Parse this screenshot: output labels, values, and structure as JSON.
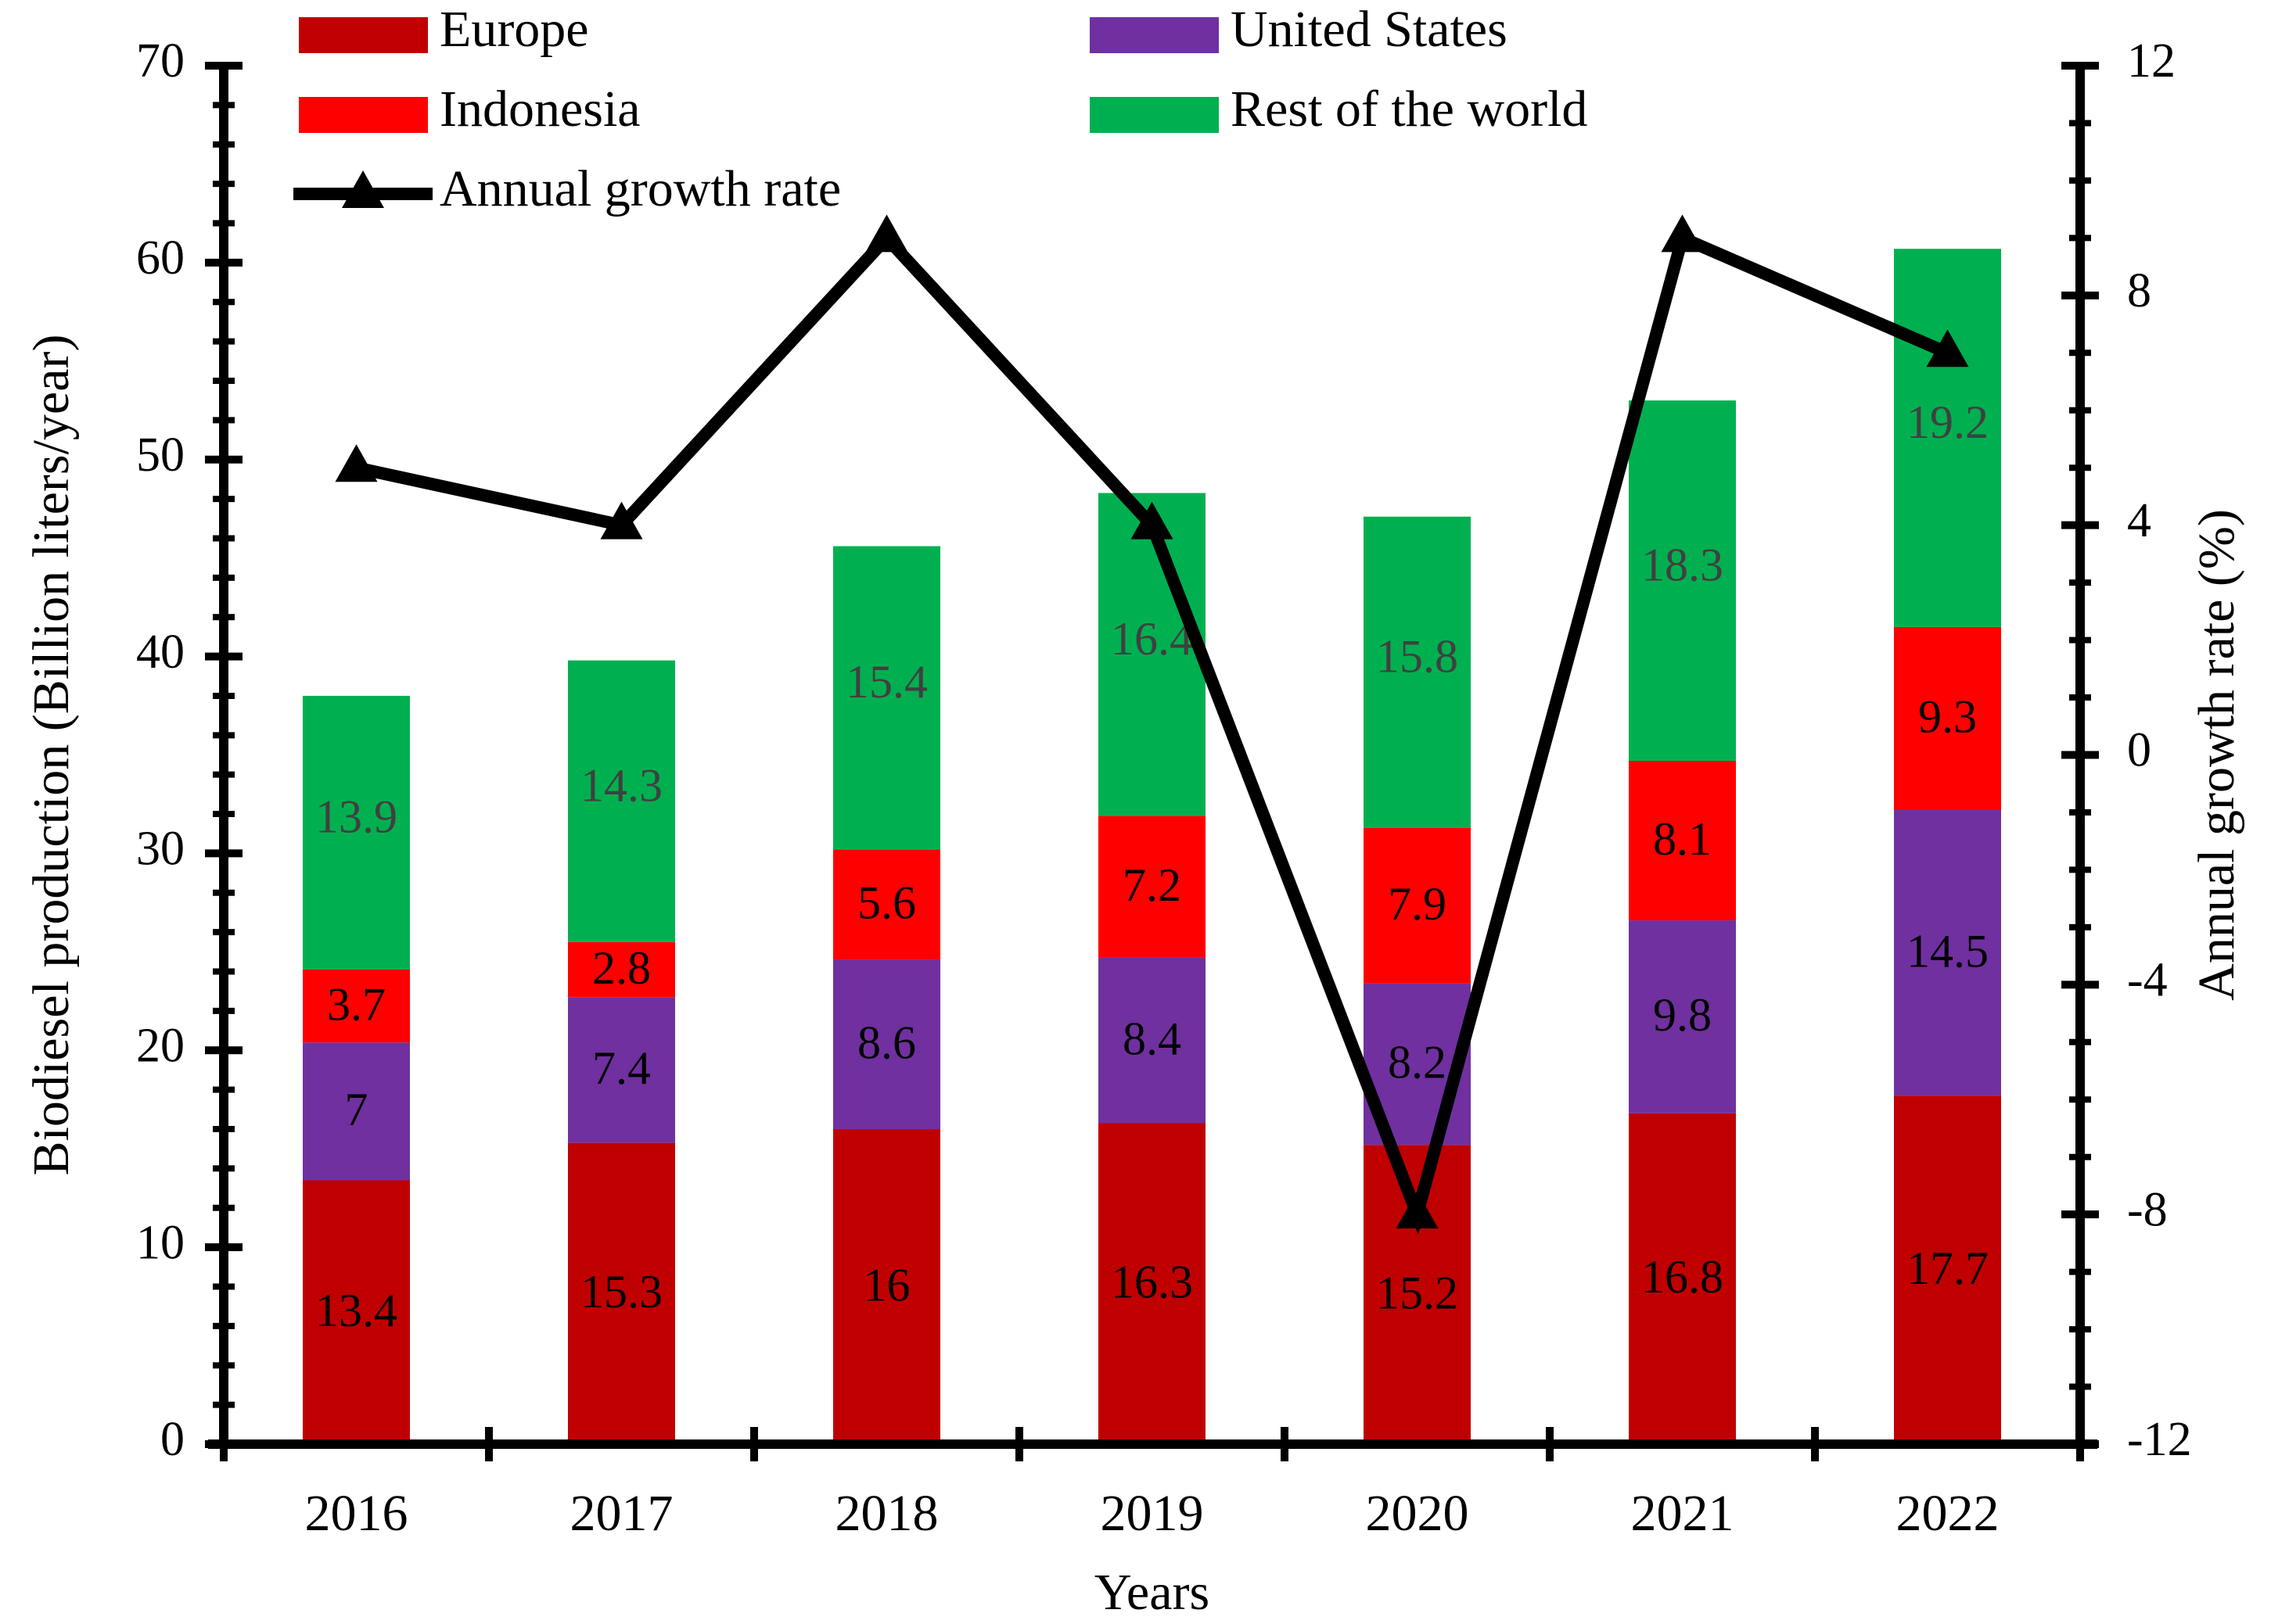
{
  "chart_data": {
    "type": "bar",
    "stacked": true,
    "categories": [
      "2016",
      "2017",
      "2018",
      "2019",
      "2020",
      "2021",
      "2022"
    ],
    "series": [
      {
        "name": "Europe",
        "color": "#c00000",
        "label_color": "#000000",
        "values": [
          13.4,
          15.3,
          16,
          16.3,
          15.2,
          16.8,
          17.7
        ]
      },
      {
        "name": "United States",
        "color": "#7030a0",
        "label_color": "#000000",
        "values": [
          7,
          7.4,
          8.6,
          8.4,
          8.2,
          9.8,
          14.5
        ]
      },
      {
        "name": "Indonesia",
        "color": "#ff0000",
        "label_color": "#000000",
        "values": [
          3.7,
          2.8,
          5.6,
          7.2,
          7.9,
          8.1,
          9.3
        ]
      },
      {
        "name": "Rest of the world",
        "color": "#00b050",
        "label_color": "#404040",
        "values": [
          13.9,
          14.3,
          15.4,
          16.4,
          15.8,
          18.3,
          19.2
        ]
      }
    ],
    "line_series": {
      "name": "Annual growth rate",
      "color": "#000000",
      "axis": "right",
      "marker": "triangle",
      "values": [
        5,
        4,
        9,
        4,
        -8,
        9,
        7
      ]
    },
    "y_left": {
      "label": "Biodiesel production (Billion liters/year)",
      "lim": [
        0,
        70
      ],
      "ticks": [
        0,
        10,
        20,
        30,
        40,
        50,
        60,
        70
      ]
    },
    "y_right": {
      "label": "Annual growth rate (%)",
      "lim": [
        -12,
        12
      ],
      "ticks": [
        -12,
        -8,
        -4,
        0,
        4,
        8,
        12
      ]
    },
    "xlabel": "Years",
    "legend": {
      "placement": "top",
      "entries": [
        "Europe",
        "United States",
        "Indonesia",
        "Rest of the world",
        "Annual growth rate"
      ]
    },
    "grid": false
  }
}
